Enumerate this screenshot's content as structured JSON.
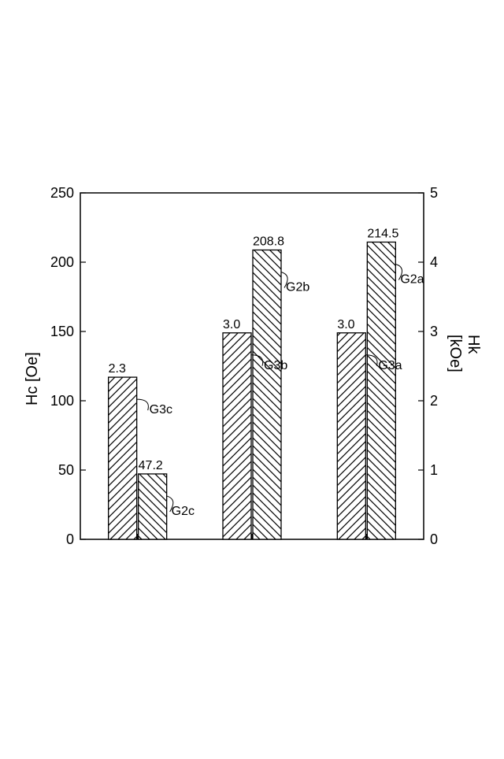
{
  "chart": {
    "type": "bar",
    "background_color": "#ffffff",
    "axis_color": "#000000",
    "tick_font_size": 18,
    "label_font_size": 20,
    "value_font_size": 16,
    "callout_font_size": 16,
    "y_left": {
      "label": "Hc [Oe]",
      "min": 0,
      "max": 250,
      "step": 50,
      "ticks": [
        "0",
        "50",
        "100",
        "150",
        "200",
        "250"
      ]
    },
    "y_right": {
      "label": "Hk [kOe]",
      "min": 0,
      "max": 5,
      "step": 1,
      "ticks": [
        "0",
        "1",
        "2",
        "3",
        "4",
        "5"
      ]
    },
    "bar_stroke": "#000000",
    "bar_fill": "#ffffff",
    "hatch_stroke": "#000000",
    "hatch_width": 1.2,
    "groups": [
      {
        "g3": {
          "name": "G3c",
          "value_label": "2.3",
          "value_right_axis": 2.34,
          "callout": "G3c"
        },
        "g2": {
          "name": "G2c",
          "value_label": "47.2",
          "value_left_axis": 47.2,
          "callout": "G2c"
        }
      },
      {
        "g3": {
          "name": "G3b",
          "value_label": "3.0",
          "value_right_axis": 2.98,
          "callout": "G3b"
        },
        "g2": {
          "name": "G2b",
          "value_label": "208.8",
          "value_left_axis": 208.8,
          "callout": "G2b"
        }
      },
      {
        "g3": {
          "name": "G3a",
          "value_label": "3.0",
          "value_right_axis": 2.98,
          "callout": "G3a"
        },
        "g2": {
          "name": "G2a",
          "value_label": "214.5",
          "value_left_axis": 214.5,
          "callout": "G2a"
        }
      }
    ]
  }
}
